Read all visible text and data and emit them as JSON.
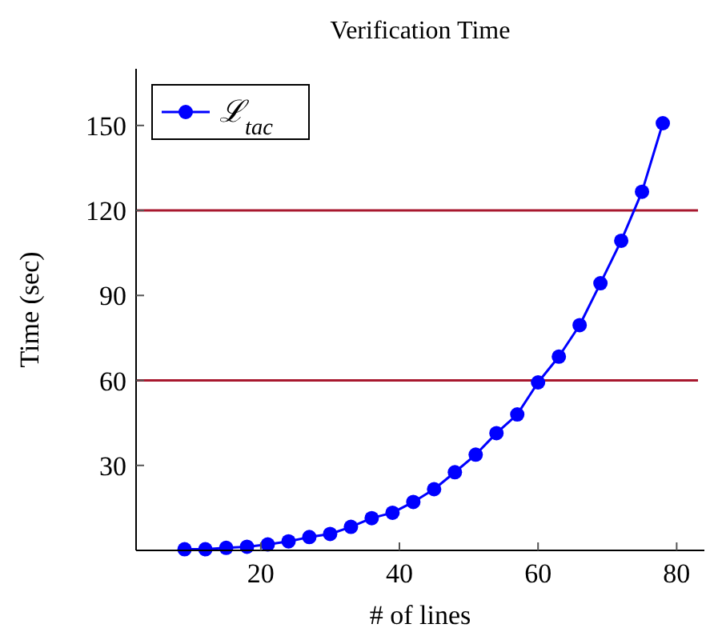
{
  "chart_data": {
    "type": "line",
    "title": "Verification Time",
    "xlabel": "# of lines",
    "ylabel": "Time (sec)",
    "x": [
      9,
      12,
      15,
      18,
      21,
      24,
      27,
      30,
      33,
      36,
      39,
      42,
      45,
      48,
      51,
      54,
      57,
      60,
      63,
      66,
      69,
      72,
      75,
      78
    ],
    "series": [
      {
        "name": "ℒ$_{tac}$",
        "color": "#0000ff",
        "values": [
          0.4,
          0.4,
          0.9,
          1.3,
          2.1,
          3.2,
          4.7,
          5.8,
          8.3,
          11.4,
          13.3,
          17.1,
          21.6,
          27.6,
          33.8,
          41.4,
          48,
          59.3,
          68.4,
          79.5,
          94.3,
          109.3,
          126.6,
          150.8
        ]
      }
    ],
    "xlim": [
      2,
      84
    ],
    "xticks": [
      20,
      40,
      60,
      80
    ],
    "ylim": [
      0,
      170
    ],
    "yticks": [
      30,
      60,
      90,
      120,
      150
    ],
    "ref_lines": [
      {
        "axis": "y",
        "value": 60,
        "color": "#a8182e"
      },
      {
        "axis": "y",
        "value": 120,
        "color": "#a8182e"
      }
    ],
    "marker": "circle",
    "line_style": "solid",
    "legend": "top left",
    "grid": false
  }
}
